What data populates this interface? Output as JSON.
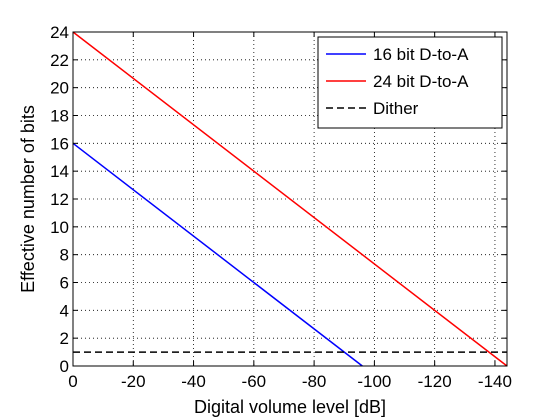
{
  "chart_data": {
    "type": "line",
    "xlabel": "Digital volume level [dB]",
    "ylabel": "Effective number of bits",
    "xlim": [
      0,
      -144
    ],
    "ylim": [
      0,
      24
    ],
    "x_ticks": [
      0,
      -20,
      -40,
      -60,
      -80,
      -100,
      -120,
      -140
    ],
    "y_ticks": [
      0,
      2,
      4,
      6,
      8,
      10,
      12,
      14,
      16,
      18,
      20,
      22,
      24
    ],
    "x_tick_labels": [
      "0",
      "-20",
      "-40",
      "-60",
      "-80",
      "-100",
      "-120",
      "-140"
    ],
    "y_tick_labels": [
      "0",
      "2",
      "4",
      "6",
      "8",
      "10",
      "12",
      "14",
      "16",
      "18",
      "20",
      "22",
      "24"
    ],
    "grid": true,
    "legend_position": "top-right",
    "series": [
      {
        "name": "16 bit D-to-A",
        "color": "#0000ff",
        "style": "solid",
        "x": [
          0,
          -96
        ],
        "y": [
          16,
          0
        ]
      },
      {
        "name": "24 bit D-to-A",
        "color": "#ff0000",
        "style": "solid",
        "x": [
          0,
          -144
        ],
        "y": [
          24,
          0
        ]
      },
      {
        "name": "Dither",
        "color": "#000000",
        "style": "dashed",
        "x": [
          0,
          -144
        ],
        "y": [
          1,
          1
        ]
      }
    ]
  }
}
